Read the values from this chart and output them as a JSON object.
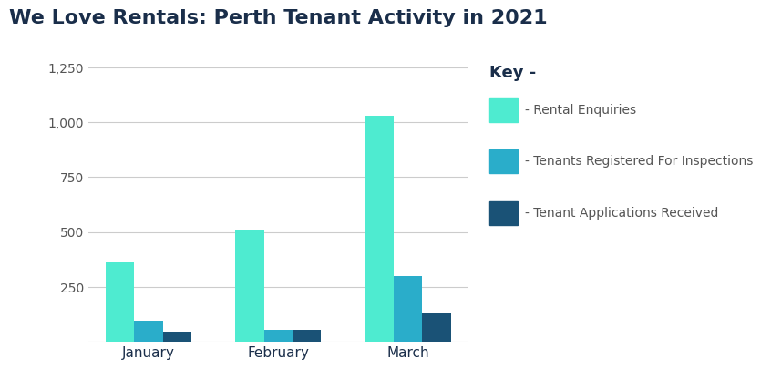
{
  "title": "We Love Rentals: Perth Tenant Activity in 2021",
  "months": [
    "January",
    "February",
    "March"
  ],
  "rental_enquiries": [
    360,
    510,
    1030
  ],
  "tenants_registered": [
    95,
    55,
    300
  ],
  "tenant_applications": [
    45,
    55,
    130
  ],
  "color_enquiries": "#4EEBD0",
  "color_registered": "#2AADCA",
  "color_applications": "#1A5276",
  "ylim": [
    0,
    1300
  ],
  "yticks": [
    0,
    250,
    500,
    750,
    1000,
    1250
  ],
  "ytick_labels": [
    "",
    "250",
    "500",
    "750",
    "1,000",
    "1,250"
  ],
  "legend_title": "Key -",
  "legend_labels": [
    "- Rental Enquiries",
    "- Tenants Registered For Inspections",
    "- Tenant Applications Received"
  ],
  "background_color": "#ffffff",
  "title_color": "#1a2e4a",
  "axis_color": "#cccccc",
  "tick_color": "#555555",
  "bar_width": 0.22,
  "title_fontsize": 16,
  "legend_fontsize": 10,
  "legend_title_fontsize": 13
}
